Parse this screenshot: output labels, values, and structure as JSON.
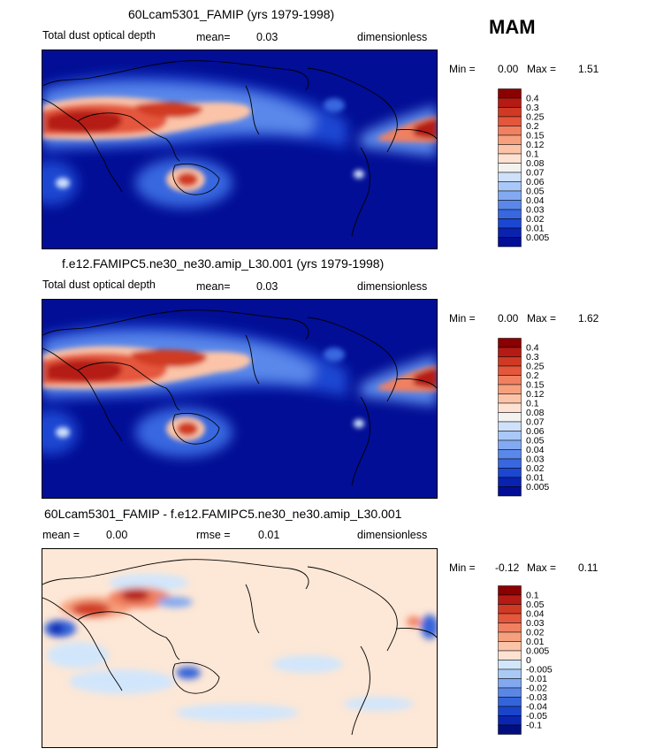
{
  "season": "MAM",
  "panels": [
    {
      "title": "60Lcam5301_FAMIP (yrs 1979-1998)",
      "variable": "Total dust optical depth",
      "stat1_label": "mean=",
      "stat1_value": "0.03",
      "units": "dimensionless",
      "min_label": "Min =",
      "min_value": "0.00",
      "max_label": "Max =",
      "max_value": "1.51",
      "colorbar_labels": [
        "0.4",
        "0.3",
        "0.25",
        "0.2",
        "0.15",
        "0.12",
        "0.1",
        "0.08",
        "0.07",
        "0.06",
        "0.05",
        "0.04",
        "0.03",
        "0.02",
        "0.01",
        "0.005"
      ]
    },
    {
      "title": "f.e12.FAMIPC5.ne30_ne30.amip_L30.001 (yrs 1979-1998)",
      "variable": "Total dust optical depth",
      "stat1_label": "mean=",
      "stat1_value": "0.03",
      "units": "dimensionless",
      "min_label": "Min =",
      "min_value": "0.00",
      "max_label": "Max =",
      "max_value": "1.62",
      "colorbar_labels": [
        "0.4",
        "0.3",
        "0.25",
        "0.2",
        "0.15",
        "0.12",
        "0.1",
        "0.08",
        "0.07",
        "0.06",
        "0.05",
        "0.04",
        "0.03",
        "0.02",
        "0.01",
        "0.005"
      ]
    },
    {
      "title": "60Lcam5301_FAMIP - f.e12.FAMIPC5.ne30_ne30.amip_L30.001",
      "stat1_label": "mean =",
      "stat1_value": "0.00",
      "stat2_label": "rmse =",
      "stat2_value": "0.01",
      "units": "dimensionless",
      "min_label": "Min =",
      "min_value": "-0.12",
      "max_label": "Max =",
      "max_value": "0.11",
      "colorbar_labels": [
        "0.1",
        "0.05",
        "0.04",
        "0.03",
        "0.02",
        "0.01",
        "0.005",
        "0",
        "-0.005",
        "-0.01",
        "-0.02",
        "-0.03",
        "-0.04",
        "-0.05",
        "-0.1"
      ]
    }
  ],
  "colors": {
    "abs_scale": [
      "#8b0000",
      "#b51a14",
      "#d03a24",
      "#e4573c",
      "#f08060",
      "#f6a07e",
      "#fbc4a8",
      "#fde2d2",
      "#f4f2ee",
      "#cfe0fb",
      "#a9c8f8",
      "#82aaf2",
      "#5a88ea",
      "#3867e0",
      "#1b47d2",
      "#0a22b0",
      "#020e95"
    ],
    "diff_scale": [
      "#8b0000",
      "#b51a14",
      "#d03a24",
      "#e4573c",
      "#f08060",
      "#f6a07e",
      "#fbc4a8",
      "#fde2d2",
      "#d2e6fb",
      "#aacaf6",
      "#82a8f0",
      "#5a86e6",
      "#3464da",
      "#1a45ca",
      "#0a26b0",
      "#020e80"
    ],
    "map_background": "#020e95",
    "diff_background": "#fde7d6"
  },
  "chart_data": [
    {
      "type": "heatmap",
      "title": "60Lcam5301_FAMIP (yrs 1979-1998)",
      "variable": "Total dust optical depth",
      "mean": 0.03,
      "min": 0.0,
      "max": 1.51,
      "levels": [
        0.005,
        0.01,
        0.02,
        0.03,
        0.04,
        0.05,
        0.06,
        0.07,
        0.08,
        0.1,
        0.12,
        0.15,
        0.2,
        0.25,
        0.3,
        0.4
      ]
    },
    {
      "type": "heatmap",
      "title": "f.e12.FAMIPC5.ne30_ne30.amip_L30.001 (yrs 1979-1998)",
      "variable": "Total dust optical depth",
      "mean": 0.03,
      "min": 0.0,
      "max": 1.62,
      "levels": [
        0.005,
        0.01,
        0.02,
        0.03,
        0.04,
        0.05,
        0.06,
        0.07,
        0.08,
        0.1,
        0.12,
        0.15,
        0.2,
        0.25,
        0.3,
        0.4
      ]
    },
    {
      "type": "heatmap",
      "title": "60Lcam5301_FAMIP - f.e12.FAMIPC5.ne30_ne30.amip_L30.001",
      "mean": 0.0,
      "rmse": 0.01,
      "min": -0.12,
      "max": 0.11,
      "levels": [
        -0.1,
        -0.05,
        -0.04,
        -0.03,
        -0.02,
        -0.01,
        -0.005,
        0,
        0.005,
        0.01,
        0.02,
        0.03,
        0.04,
        0.05,
        0.1
      ]
    }
  ]
}
